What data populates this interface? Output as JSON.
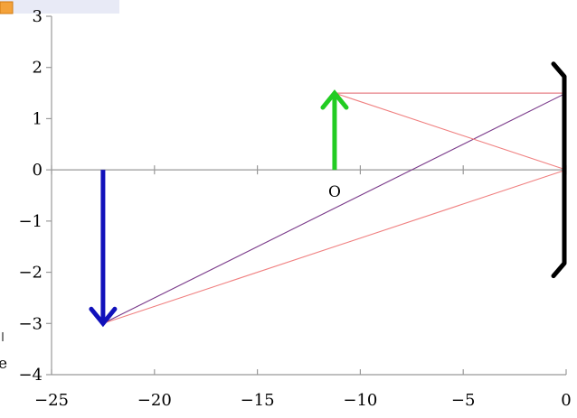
{
  "chart_data": {
    "type": "line",
    "title": "",
    "xlabel": "",
    "ylabel": "",
    "xlim": [
      -25,
      0
    ],
    "ylim": [
      -4,
      3
    ],
    "grid": false,
    "x_ticks": [
      {
        "value": -25,
        "label": "−25"
      },
      {
        "value": -20,
        "label": "−20"
      },
      {
        "value": -15,
        "label": "−15"
      },
      {
        "value": -10,
        "label": "−10"
      },
      {
        "value": -5,
        "label": "−5"
      },
      {
        "value": 0,
        "label": "0"
      }
    ],
    "y_ticks": [
      {
        "value": 3,
        "label": "3"
      },
      {
        "value": 2,
        "label": "2"
      },
      {
        "value": 1,
        "label": "1"
      },
      {
        "value": 0,
        "label": "0"
      },
      {
        "value": -1,
        "label": "−1"
      },
      {
        "value": -2,
        "label": "−2"
      },
      {
        "value": -3,
        "label": "−3"
      },
      {
        "value": -4,
        "label": "−4"
      }
    ],
    "object_arrow": {
      "x": -11.25,
      "y_from": 0,
      "y_to": 1.5,
      "color": "#22cc22"
    },
    "image_arrow": {
      "x": -22.5,
      "y_from": 0,
      "y_to": -3,
      "color": "#1111bb"
    },
    "mirror": {
      "x": 0,
      "y_from": -2,
      "y_to": 2,
      "color": "#000000"
    },
    "rays": [
      {
        "name": "",
        "color": "#7a3a8a",
        "points": [
          [
            -11.25,
            1.5
          ],
          [
            0,
            1.5
          ]
        ]
      },
      {
        "name": "",
        "color": "#7a3a8a",
        "points": [
          [
            0,
            1.5
          ],
          [
            -22.5,
            -3
          ]
        ]
      },
      {
        "name": "",
        "color": "#f08080",
        "points": [
          [
            -11.25,
            1.5
          ],
          [
            0,
            0
          ]
        ]
      },
      {
        "name": "",
        "color": "#f08080",
        "points": [
          [
            0,
            0
          ],
          [
            -22.5,
            -3
          ]
        ]
      },
      {
        "name": "",
        "color": "#f08080",
        "points": [
          [
            -11.25,
            1.5
          ],
          [
            0,
            1.5
          ]
        ]
      }
    ],
    "annotations": [
      {
        "text": "O",
        "x": -11.25,
        "y": -0.35
      }
    ]
  },
  "colors": {
    "axis": "#999999",
    "tick": "#999999",
    "corner_widget": "#f4a23a",
    "corner_widget_bg": "#e8eaf6"
  }
}
